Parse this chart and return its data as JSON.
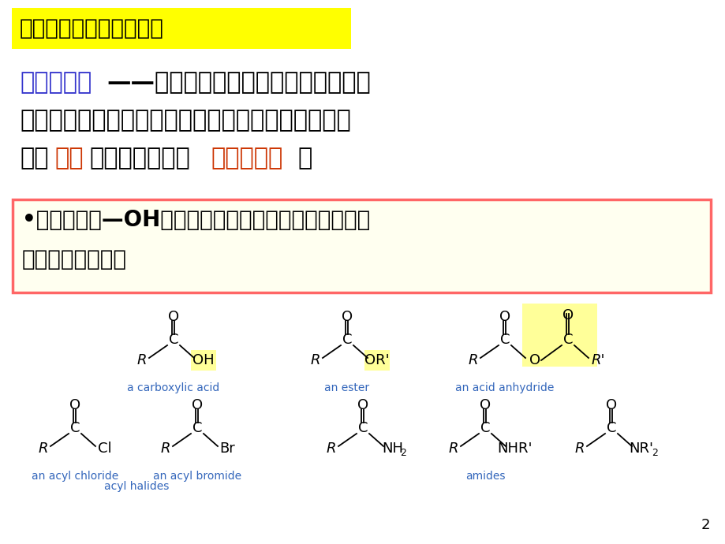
{
  "bg_color": "#ffffff",
  "title_text": "羧酸衍生物的结构和命名",
  "title_bg": "#ffff00",
  "para1_blue": "羧酸衍生物",
  "para1_rest1": "——一般指羧基中的烃基被其他原子或",
  "para1_line2": "基团取代后所生成的化合物。羧酸和羧酸衍生物中都",
  "para1_line3a": "含有",
  "para1_red1": "酰基",
  "para1_line3b": "，因此也统称为",
  "para1_red2": "酰基化合物",
  "para1_line3c": "。",
  "box2_text1": "•羧酸分子中—OH被不同取代基取代，分别称为酰卤、",
  "box2_text2": "酸酐、酰胺和酯：",
  "box2_bg": "#fffff0",
  "box2_border": "#ff6666",
  "page_num": "2",
  "blue_color": "#3333cc",
  "red_color": "#cc3300",
  "black_color": "#000000",
  "label_blue": "#3366bb"
}
